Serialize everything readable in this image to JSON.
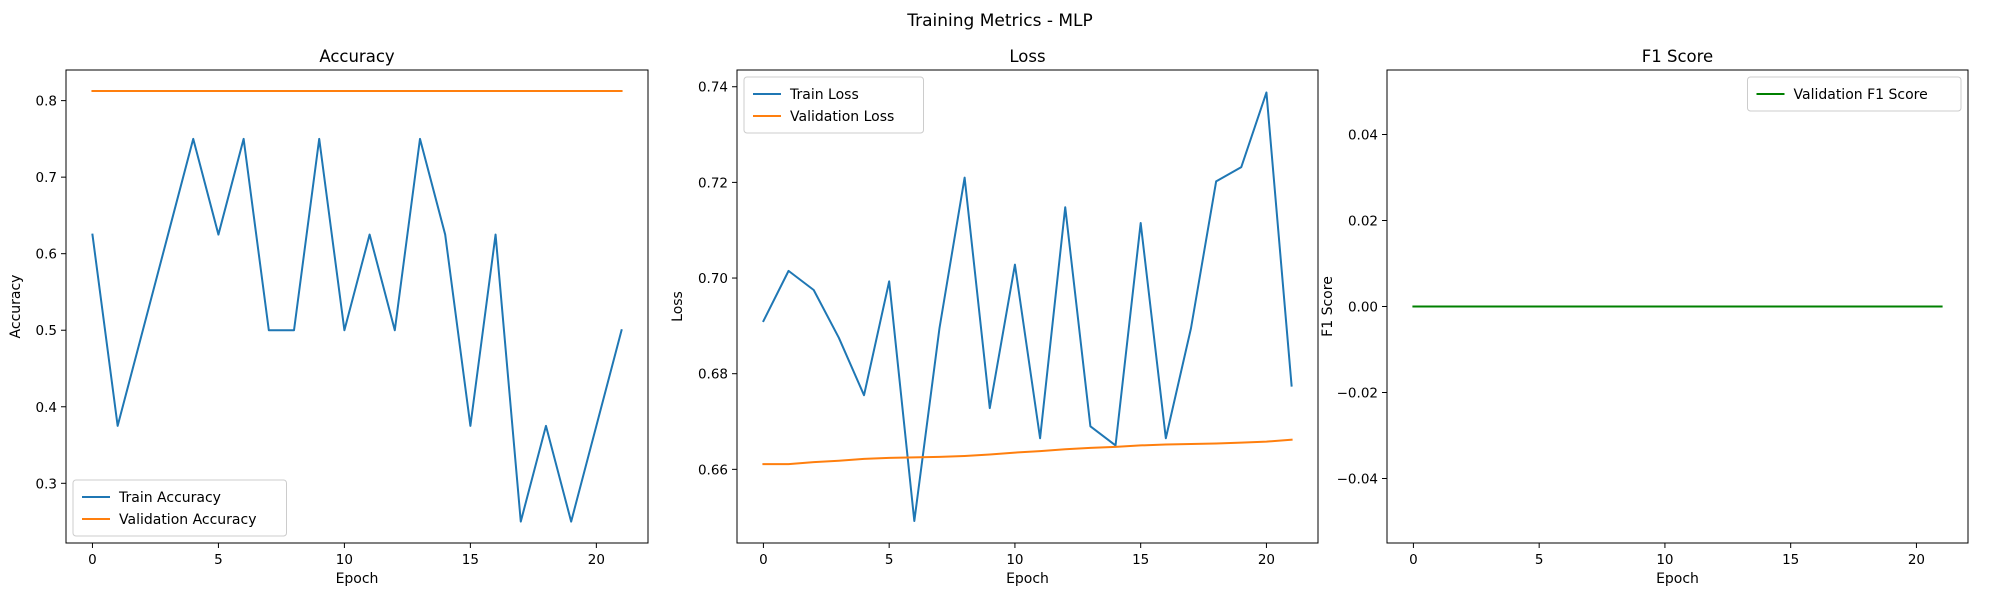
{
  "figure": {
    "title": "Training Metrics - MLP"
  },
  "chart_data": [
    {
      "type": "line",
      "title": "Accuracy",
      "xlabel": "Epoch",
      "ylabel": "Accuracy",
      "xlim": [
        -1.05,
        22.05
      ],
      "ylim": [
        0.222,
        0.84
      ],
      "xticks": [
        0,
        5,
        10,
        15,
        20
      ],
      "yticks": [
        0.3,
        0.4,
        0.5,
        0.6,
        0.7,
        0.8
      ],
      "ytick_decimals": 1,
      "legend_position": "lower-left",
      "x": [
        0,
        1,
        2,
        3,
        4,
        5,
        6,
        7,
        8,
        9,
        10,
        11,
        12,
        13,
        14,
        15,
        16,
        17,
        18,
        19,
        20,
        21
      ],
      "series": [
        {
          "name": "Train Accuracy",
          "color": "#1f77b4",
          "values": [
            0.625,
            0.375,
            0.5,
            0.625,
            0.75,
            0.625,
            0.75,
            0.5,
            0.5,
            0.75,
            0.5,
            0.625,
            0.5,
            0.75,
            0.625,
            0.375,
            0.625,
            0.25,
            0.375,
            0.25,
            0.375,
            0.5
          ]
        },
        {
          "name": "Validation Accuracy",
          "color": "#ff7f0e",
          "values": [
            0.8125,
            0.8125,
            0.8125,
            0.8125,
            0.8125,
            0.8125,
            0.8125,
            0.8125,
            0.8125,
            0.8125,
            0.8125,
            0.8125,
            0.8125,
            0.8125,
            0.8125,
            0.8125,
            0.8125,
            0.8125,
            0.8125,
            0.8125,
            0.8125,
            0.8125
          ]
        }
      ]
    },
    {
      "type": "line",
      "title": "Loss",
      "xlabel": "Epoch",
      "ylabel": "Loss",
      "xlim": [
        -1.05,
        22.05
      ],
      "ylim": [
        0.6446,
        0.7435
      ],
      "xticks": [
        0,
        5,
        10,
        15,
        20
      ],
      "yticks": [
        0.66,
        0.68,
        0.7,
        0.72,
        0.74
      ],
      "ytick_decimals": 2,
      "legend_position": "upper-left",
      "x": [
        0,
        1,
        2,
        3,
        4,
        5,
        6,
        7,
        8,
        9,
        10,
        11,
        12,
        13,
        14,
        15,
        16,
        17,
        18,
        19,
        20,
        21
      ],
      "series": [
        {
          "name": "Train Loss",
          "color": "#1f77b4",
          "values": [
            0.691,
            0.7015,
            0.6975,
            0.6875,
            0.6755,
            0.6993,
            0.6492,
            0.6895,
            0.721,
            0.6728,
            0.7028,
            0.6665,
            0.7148,
            0.669,
            0.665,
            0.7115,
            0.6665,
            0.6895,
            0.7202,
            0.7232,
            0.7388,
            0.6775
          ]
        },
        {
          "name": "Validation Loss",
          "color": "#ff7f0e",
          "values": [
            0.6611,
            0.6611,
            0.6615,
            0.6618,
            0.6622,
            0.6624,
            0.6625,
            0.6626,
            0.6628,
            0.6631,
            0.6635,
            0.6638,
            0.6642,
            0.6645,
            0.6647,
            0.665,
            0.6652,
            0.6653,
            0.6654,
            0.6656,
            0.6658,
            0.6662
          ]
        }
      ]
    },
    {
      "type": "line",
      "title": "F1 Score",
      "xlabel": "Epoch",
      "ylabel": "F1 Score",
      "xlim": [
        -1.05,
        22.05
      ],
      "ylim": [
        -0.055,
        0.055
      ],
      "xticks": [
        0,
        5,
        10,
        15,
        20
      ],
      "yticks": [
        -0.04,
        -0.02,
        0.0,
        0.02,
        0.04
      ],
      "ytick_decimals": 2,
      "legend_position": "upper-right",
      "x": [
        0,
        1,
        2,
        3,
        4,
        5,
        6,
        7,
        8,
        9,
        10,
        11,
        12,
        13,
        14,
        15,
        16,
        17,
        18,
        19,
        20,
        21
      ],
      "series": [
        {
          "name": "Validation F1 Score",
          "color": "#008000",
          "values": [
            0,
            0,
            0,
            0,
            0,
            0,
            0,
            0,
            0,
            0,
            0,
            0,
            0,
            0,
            0,
            0,
            0,
            0,
            0,
            0,
            0,
            0
          ]
        }
      ]
    }
  ]
}
